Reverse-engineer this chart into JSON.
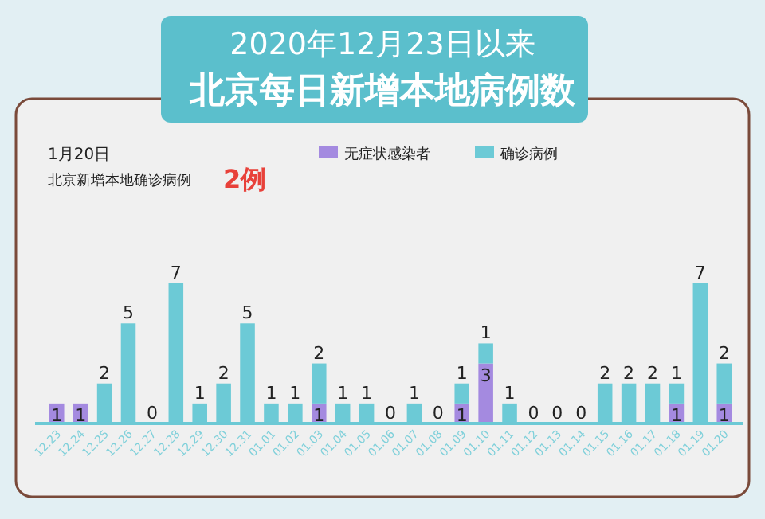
{
  "chart_data": {
    "type": "bar",
    "title": "2020年12月23日以来",
    "subtitle": "北京每日新增本地病例数",
    "annotations": [
      "1月20日",
      "北京新增本地确诊病例",
      "2例"
    ],
    "categories": [
      "12.23",
      "12.24",
      "12.25",
      "12.26",
      "12.27",
      "12.28",
      "12.29",
      "12.30",
      "12.31",
      "01.01",
      "01.02",
      "01.03",
      "01.04",
      "01.05",
      "01.06",
      "01.07",
      "01.08",
      "01.09",
      "01.10",
      "01.11",
      "01.12",
      "01.13",
      "01.14",
      "01.15",
      "01.16",
      "01.17",
      "01.18",
      "01.19",
      "01.20"
    ],
    "stacked": true,
    "legend": "top",
    "grid": false,
    "series": [
      {
        "name": "无症状感染者",
        "color": "#a48ae0",
        "values": [
          1,
          1,
          0,
          0,
          0,
          0,
          0,
          0,
          0,
          0,
          0,
          1,
          0,
          0,
          0,
          0,
          0,
          1,
          3,
          0,
          0,
          0,
          0,
          0,
          0,
          0,
          1,
          0,
          1
        ],
        "value_labels": [
          "1",
          "1",
          null,
          null,
          null,
          null,
          null,
          null,
          null,
          null,
          null,
          "1",
          null,
          null,
          null,
          null,
          null,
          "1",
          "3",
          null,
          null,
          null,
          null,
          null,
          null,
          null,
          "1",
          null,
          "1"
        ]
      },
      {
        "name": "确诊病例",
        "color": "#6ccad6",
        "values": [
          0,
          0,
          2,
          5,
          0,
          7,
          1,
          2,
          5,
          1,
          1,
          2,
          1,
          1,
          0,
          1,
          0,
          1,
          1,
          1,
          0,
          0,
          0,
          2,
          2,
          2,
          1,
          7,
          2
        ],
        "value_labels": [
          null,
          null,
          "2",
          "5",
          "0",
          "7",
          "1",
          "2",
          "5",
          "1",
          "1",
          "2",
          "1",
          "1",
          "0",
          "1",
          "0",
          "1",
          "1",
          "1",
          "0",
          "0",
          "0",
          "2",
          "2",
          "2",
          "1",
          "7",
          "2"
        ]
      }
    ]
  }
}
